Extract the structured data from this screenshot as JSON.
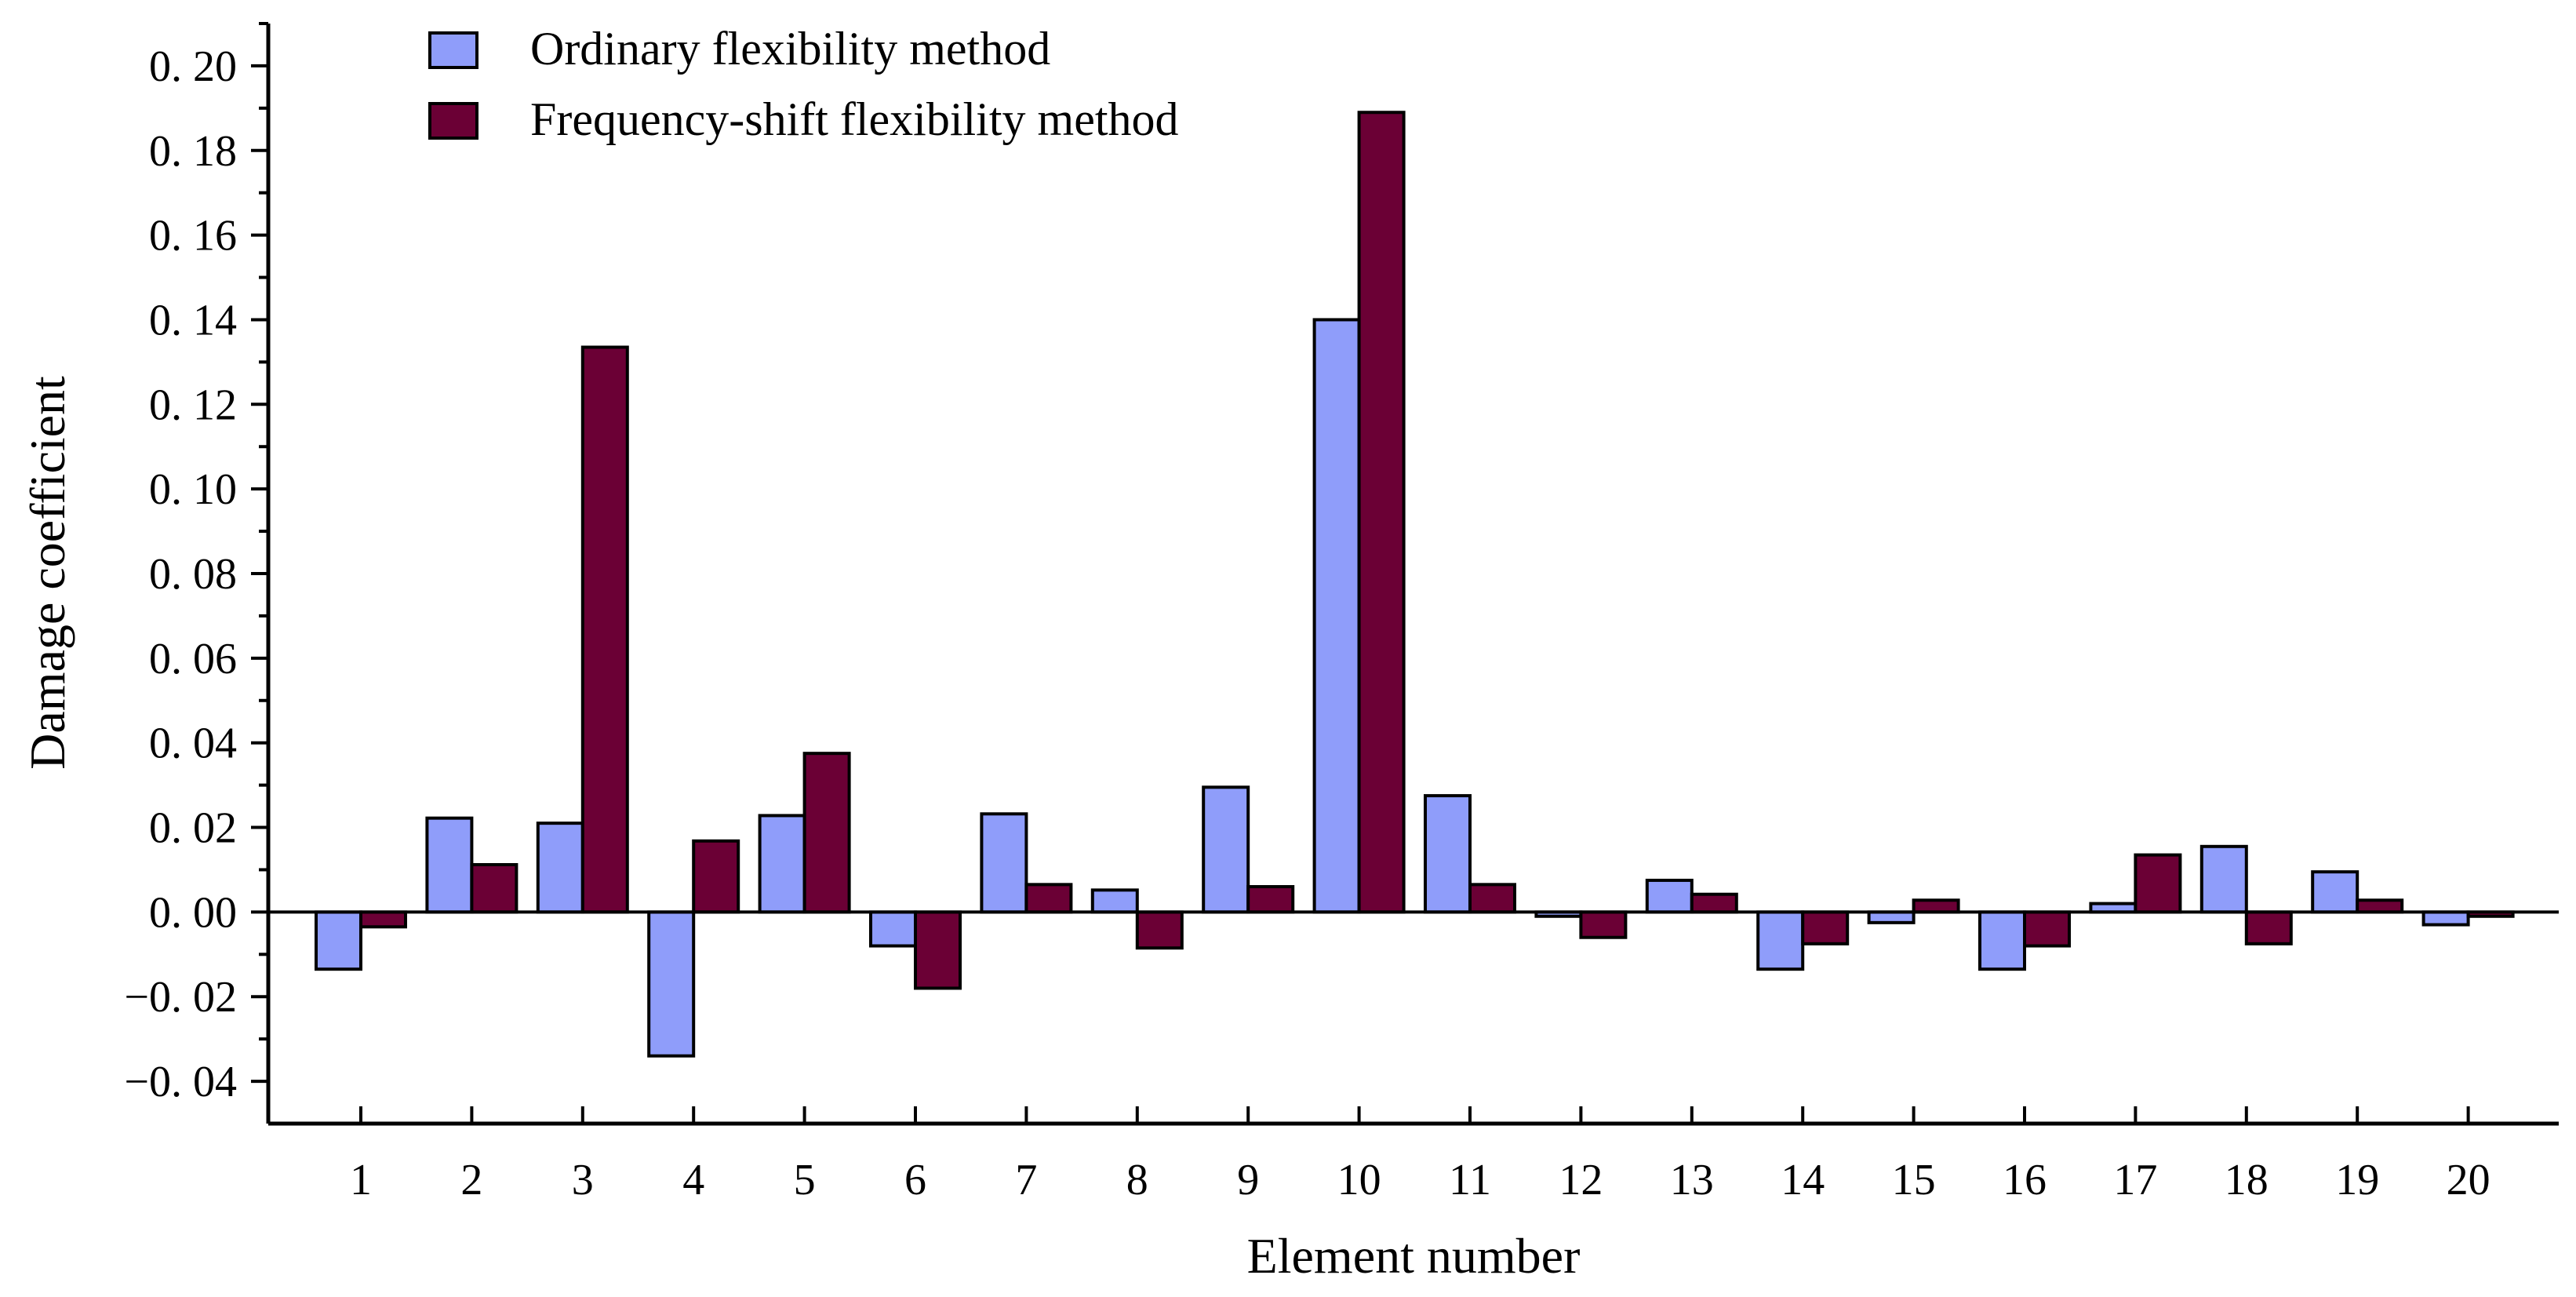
{
  "chart_data": {
    "type": "bar",
    "title": "",
    "xlabel": "Element number",
    "ylabel": "Damage coefficient",
    "ylim": [
      -0.05,
      0.21
    ],
    "yticks": [
      -0.04,
      -0.02,
      0.0,
      0.02,
      0.04,
      0.06,
      0.08,
      0.1,
      0.12,
      0.14,
      0.16,
      0.18,
      0.2
    ],
    "ytick_labels": [
      "−0. 04",
      "−0. 02",
      "0. 00",
      "0. 02",
      "0. 04",
      "0. 06",
      "0. 08",
      "0. 10",
      "0. 12",
      "0. 14",
      "0. 16",
      "0. 18",
      "0. 20"
    ],
    "categories": [
      "1",
      "2",
      "3",
      "4",
      "5",
      "6",
      "7",
      "8",
      "9",
      "10",
      "11",
      "12",
      "13",
      "14",
      "15",
      "16",
      "17",
      "18",
      "19",
      "20"
    ],
    "grid": false,
    "legend_position": "top-left",
    "series": [
      {
        "name": "Ordinary flexibility method",
        "color": "#8f9dfa",
        "values": [
          -0.0135,
          0.0222,
          0.021,
          -0.034,
          0.0228,
          -0.008,
          0.0232,
          0.0052,
          0.0295,
          0.14,
          0.0275,
          -0.001,
          0.0075,
          -0.0135,
          -0.0025,
          -0.0135,
          0.002,
          0.0155,
          0.0095,
          -0.003
        ]
      },
      {
        "name": "Frequency-shift flexibility method",
        "color": "#6b0035",
        "values": [
          -0.0035,
          0.0112,
          0.1335,
          0.0168,
          0.0375,
          -0.018,
          0.0065,
          -0.0085,
          0.006,
          0.189,
          0.0065,
          -0.006,
          0.0042,
          -0.0075,
          0.0028,
          -0.008,
          0.0135,
          -0.0075,
          0.0028,
          -0.001
        ]
      }
    ]
  }
}
